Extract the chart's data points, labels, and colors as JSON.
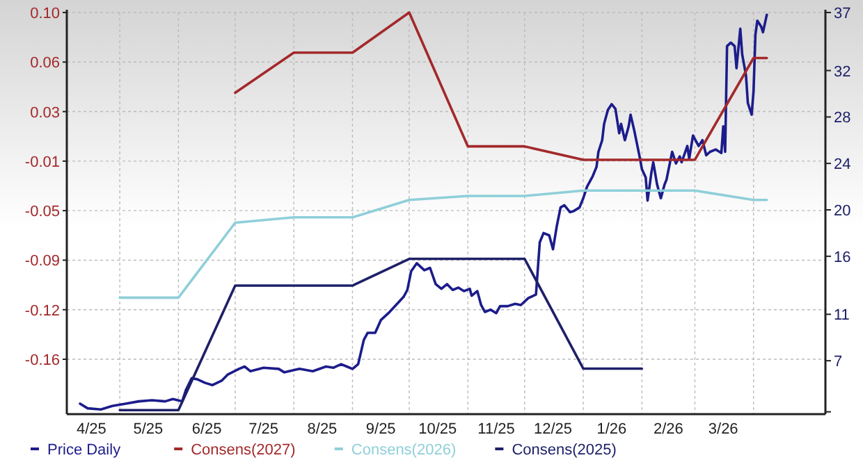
{
  "chart_data": {
    "type": "line",
    "legend": "bottom",
    "grid": true,
    "xlim": [
      "2025-04-03",
      "2026-05-09"
    ],
    "xticks": [
      {
        "value": "2025-05-01",
        "label": null
      },
      {
        "value": "2025-06-01",
        "label": null
      },
      {
        "value": "2025-07-01",
        "label": null
      },
      {
        "value": "2025-08-01",
        "label": null
      },
      {
        "value": "2025-09-01",
        "label": null
      },
      {
        "value": "2025-10-01",
        "label": null
      },
      {
        "value": "2025-11-01",
        "label": null
      },
      {
        "value": "2025-12-01",
        "label": null
      },
      {
        "value": "2026-01-01",
        "label": null
      },
      {
        "value": "2026-02-01",
        "label": null
      },
      {
        "value": "2026-03-01",
        "label": null
      },
      {
        "value": "2026-04-01",
        "label": null
      },
      {
        "value": "2025-04-16",
        "label": "4/25"
      },
      {
        "value": "2025-05-16",
        "label": "5/25"
      },
      {
        "value": "2025-06-16",
        "label": "6/25"
      },
      {
        "value": "2025-07-16",
        "label": "7/25"
      },
      {
        "value": "2025-08-16",
        "label": "8/25"
      },
      {
        "value": "2025-09-16",
        "label": "9/25"
      },
      {
        "value": "2025-10-16",
        "label": "10/25"
      },
      {
        "value": "2025-11-16",
        "label": "11/25"
      },
      {
        "value": "2025-12-16",
        "label": "12/25"
      },
      {
        "value": "2026-01-16",
        "label": "1/26"
      },
      {
        "value": "2026-02-15",
        "label": "2/26"
      },
      {
        "value": "2026-03-16",
        "label": "3/26"
      }
    ],
    "ylim": [
      -0.2,
      0.1
    ],
    "yticks": [
      {
        "value": 0.1,
        "label": "0.10"
      },
      {
        "value": 0.063,
        "label": "0.06"
      },
      {
        "value": 0.026,
        "label": "0.03"
      },
      {
        "value": -0.011,
        "label": "-0.01"
      },
      {
        "value": -0.048,
        "label": "-0.05"
      },
      {
        "value": -0.085,
        "label": "-0.09"
      },
      {
        "value": -0.122,
        "label": "-0.12"
      },
      {
        "value": -0.159,
        "label": "-0.16"
      }
    ],
    "y2lim": [
      2.4,
      37
    ],
    "y2ticks": [
      37,
      32,
      28,
      24,
      20,
      16,
      11,
      7,
      {
        "value": 2.6,
        "label": null
      }
    ],
    "series": [
      {
        "name": "Price Daily",
        "color": "#1c1c8c",
        "axis": "y2",
        "x": [
          "2025-04-10",
          "2025-04-14",
          "2025-04-21",
          "2025-04-27",
          "2025-05-04",
          "2025-05-11",
          "2025-05-18",
          "2025-05-25",
          "2025-05-29",
          "2025-06-03",
          "2025-06-05",
          "2025-06-08",
          "2025-06-11",
          "2025-06-15",
          "2025-06-19",
          "2025-06-24",
          "2025-06-27",
          "2025-07-03",
          "2025-07-06",
          "2025-07-09",
          "2025-07-16",
          "2025-07-24",
          "2025-07-27",
          "2025-08-04",
          "2025-08-11",
          "2025-08-18",
          "2025-08-22",
          "2025-08-26",
          "2025-08-29",
          "2025-09-01",
          "2025-09-04",
          "2025-09-07",
          "2025-09-09",
          "2025-09-13",
          "2025-09-16",
          "2025-09-20",
          "2025-09-24",
          "2025-09-28",
          "2025-09-30",
          "2025-10-02",
          "2025-10-05",
          "2025-10-09",
          "2025-10-12",
          "2025-10-15",
          "2025-10-18",
          "2025-10-21",
          "2025-10-24",
          "2025-10-27",
          "2025-10-30",
          "2025-11-02",
          "2025-11-03",
          "2025-11-06",
          "2025-11-08",
          "2025-11-10",
          "2025-11-13",
          "2025-11-16",
          "2025-11-18",
          "2025-11-22",
          "2025-11-26",
          "2025-11-29",
          "2025-12-03",
          "2025-12-07",
          "2025-12-09",
          "2025-12-11",
          "2025-12-14",
          "2025-12-16",
          "2025-12-18",
          "2025-12-20",
          "2025-12-22",
          "2025-12-25",
          "2025-12-27",
          "2025-12-30",
          "2026-01-01",
          "2026-01-03",
          "2026-01-06",
          "2026-01-08",
          "2026-01-09",
          "2026-01-11",
          "2026-01-12",
          "2026-01-14",
          "2026-01-16",
          "2026-01-18",
          "2026-01-20",
          "2026-01-21",
          "2026-01-23",
          "2026-01-25",
          "2026-01-26",
          "2026-01-28",
          "2026-01-31",
          "2026-02-01",
          "2026-02-03",
          "2026-02-04",
          "2026-02-06",
          "2026-02-07",
          "2026-02-09",
          "2026-02-11",
          "2026-02-13",
          "2026-02-14",
          "2026-02-17",
          "2026-02-19",
          "2026-02-21",
          "2026-02-22",
          "2026-02-25",
          "2026-02-26",
          "2026-02-28",
          "2026-03-03",
          "2026-03-05",
          "2026-03-07",
          "2026-03-09",
          "2026-03-12",
          "2026-03-14",
          "2026-03-15",
          "2026-03-16",
          "2026-03-17",
          "2026-03-18",
          "2026-03-20",
          "2026-03-22",
          "2026-03-23",
          "2026-03-25",
          "2026-03-26",
          "2026-03-28",
          "2026-03-29",
          "2026-03-31",
          "2026-04-01",
          "2026-04-02",
          "2026-04-03",
          "2026-04-05",
          "2026-04-06",
          "2026-04-08"
        ],
        "values": [
          3.3,
          2.9,
          2.8,
          3.1,
          3.3,
          3.5,
          3.6,
          3.5,
          3.7,
          3.5,
          4.5,
          5.5,
          5.4,
          5.1,
          4.9,
          5.3,
          5.8,
          6.3,
          6.5,
          6.1,
          6.4,
          6.3,
          6.0,
          6.3,
          6.1,
          6.5,
          6.4,
          6.7,
          6.5,
          6.3,
          6.7,
          8.8,
          9.4,
          9.4,
          10.5,
          11.1,
          11.8,
          12.5,
          13.1,
          14.7,
          15.4,
          14.8,
          15.0,
          13.6,
          13.2,
          13.6,
          13.1,
          13.3,
          13.0,
          13.2,
          12.6,
          13.0,
          11.8,
          11.2,
          11.4,
          11.1,
          11.7,
          11.7,
          11.9,
          11.8,
          12.4,
          12.7,
          17.2,
          18.0,
          17.8,
          16.6,
          18.6,
          20.2,
          20.4,
          19.8,
          19.9,
          20.2,
          21.0,
          22.0,
          22.9,
          23.7,
          25.0,
          26.0,
          27.4,
          28.6,
          29.1,
          28.7,
          26.6,
          27.4,
          26.0,
          27.2,
          28.2,
          26.8,
          24.4,
          23.5,
          22.8,
          20.8,
          23.2,
          24.1,
          22.2,
          21.0,
          22.2,
          22.6,
          25.0,
          24.0,
          24.6,
          24.1,
          25.5,
          24.4,
          26.4,
          25.5,
          26.0,
          24.7,
          25.0,
          25.2,
          25.0,
          24.9,
          27.2,
          25.0,
          34.1,
          34.4,
          34.1,
          32.2,
          35.6,
          33.4,
          31.6,
          29.2,
          28.2,
          30.2,
          35.1,
          36.3,
          35.8,
          35.3,
          36.8
        ]
      },
      {
        "name": "Consens(2027)",
        "color": "#a3292b",
        "x": [
          "2025-07-01",
          "2025-08-01",
          "2025-09-01",
          "2025-10-01",
          "2025-11-01",
          "2025-12-01",
          "2026-01-01",
          "2026-03-01",
          "2026-04-01",
          "2026-04-08"
        ],
        "values": [
          0.04,
          0.07,
          0.07,
          0.1,
          0.0,
          0.0,
          -0.01,
          -0.01,
          0.066,
          0.066
        ]
      },
      {
        "name": "Consens(2026)",
        "color": "#8fcfd9",
        "x": [
          "2025-05-01",
          "2025-06-01",
          "2025-07-01",
          "2025-08-01",
          "2025-09-01",
          "2025-10-01",
          "2025-11-01",
          "2025-12-01",
          "2026-01-01",
          "2026-02-01",
          "2026-03-01",
          "2026-04-01",
          "2026-04-08"
        ],
        "values": [
          -0.113,
          -0.113,
          -0.057,
          -0.053,
          -0.053,
          -0.04,
          -0.037,
          -0.037,
          -0.033,
          -0.033,
          -0.033,
          -0.04,
          -0.04
        ]
      },
      {
        "name": "Consens(2025)",
        "color": "#1e2068",
        "x": [
          "2025-05-01",
          "2025-06-01",
          "2025-07-01",
          "2025-08-01",
          "2025-09-01",
          "2025-10-01",
          "2025-11-01",
          "2025-12-01",
          "2026-01-01",
          "2026-02-01"
        ],
        "values": [
          -0.197,
          -0.197,
          -0.104,
          -0.104,
          -0.104,
          -0.084,
          -0.084,
          -0.084,
          -0.166,
          -0.166
        ]
      }
    ]
  }
}
